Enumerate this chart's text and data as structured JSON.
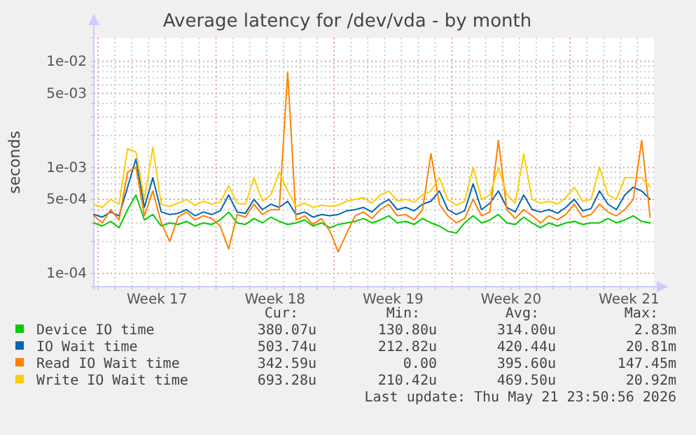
{
  "chart_data": {
    "type": "line",
    "title": "Average latency for /dev/vda - by month",
    "ylabel": "seconds",
    "log": true,
    "grid": true,
    "legend": "bottom",
    "line_style": "solid",
    "marker": "none",
    "xlim": [
      "2026-04-19T18:00",
      "2026-05-22T23:30"
    ],
    "ylim": [
      7.5e-05,
      0.0167
    ],
    "yticks": [
      {
        "value": 0.0001,
        "label": "1e-04"
      },
      {
        "value": 0.0002,
        "label": null
      },
      {
        "value": 0.0003,
        "label": null
      },
      {
        "value": 0.0004,
        "label": null
      },
      {
        "value": 0.0005,
        "label": "5e-04"
      },
      {
        "value": 0.0006,
        "label": null
      },
      {
        "value": 0.0007,
        "label": null
      },
      {
        "value": 0.0008,
        "label": null
      },
      {
        "value": 0.0009,
        "label": null
      },
      {
        "value": 0.001,
        "label": "1e-03"
      },
      {
        "value": 0.002,
        "label": null
      },
      {
        "value": 0.003,
        "label": null
      },
      {
        "value": 0.004,
        "label": null
      },
      {
        "value": 0.005,
        "label": "5e-03"
      },
      {
        "value": 0.006,
        "label": null
      },
      {
        "value": 0.007,
        "label": null
      },
      {
        "value": 0.008,
        "label": null
      },
      {
        "value": 0.009,
        "label": null
      },
      {
        "value": 0.01,
        "label": "1e-02"
      }
    ],
    "xticks": [
      {
        "value": "2026-04-20",
        "label": null
      },
      {
        "value": "2026-04-21",
        "label": null
      },
      {
        "value": "2026-04-22",
        "label": null
      },
      {
        "value": "2026-04-23",
        "label": null
      },
      {
        "value": "2026-04-24",
        "label": null
      },
      {
        "value": "2026-04-25",
        "label": null
      },
      {
        "value": "2026-04-26",
        "label": null
      },
      {
        "value": "2026-04-27",
        "label": null
      },
      {
        "value": "2026-04-28",
        "label": null
      },
      {
        "value": "2026-04-29",
        "label": null
      },
      {
        "value": "2026-04-30",
        "label": null
      },
      {
        "value": "2026-05-01",
        "label": null
      },
      {
        "value": "2026-05-02",
        "label": null
      },
      {
        "value": "2026-05-03",
        "label": null
      },
      {
        "value": "2026-05-04",
        "label": null
      },
      {
        "value": "2026-05-05",
        "label": null
      },
      {
        "value": "2026-05-06",
        "label": null
      },
      {
        "value": "2026-05-07",
        "label": null
      },
      {
        "value": "2026-05-08",
        "label": null
      },
      {
        "value": "2026-05-09",
        "label": null
      },
      {
        "value": "2026-05-10",
        "label": null
      },
      {
        "value": "2026-05-11",
        "label": null
      },
      {
        "value": "2026-05-12",
        "label": null
      },
      {
        "value": "2026-05-13",
        "label": null
      },
      {
        "value": "2026-05-14",
        "label": null
      },
      {
        "value": "2026-05-15",
        "label": null
      },
      {
        "value": "2026-05-16",
        "label": null
      },
      {
        "value": "2026-05-17",
        "label": null
      },
      {
        "value": "2026-05-18",
        "label": null
      },
      {
        "value": "2026-05-19",
        "label": null
      },
      {
        "value": "2026-05-20",
        "label": null
      },
      {
        "value": "2026-05-21",
        "label": null
      },
      {
        "value": "2026-05-22",
        "label": null
      },
      {
        "value": "2026-04-23T12:00",
        "label": "Week 17"
      },
      {
        "value": "2026-04-30T12:00",
        "label": "Week 18"
      },
      {
        "value": "2026-05-07T12:00",
        "label": "Week 19"
      },
      {
        "value": "2026-05-14T12:00",
        "label": "Week 20"
      },
      {
        "value": "2026-05-21T12:00",
        "label": "Week 21"
      }
    ],
    "x": [
      "2026-04-19T18:00",
      "2026-04-20T06:00",
      "2026-04-20T18:00",
      "2026-04-21T06:00",
      "2026-04-21T18:00",
      "2026-04-22T06:00",
      "2026-04-22T18:00",
      "2026-04-23T06:00",
      "2026-04-23T18:00",
      "2026-04-24T06:00",
      "2026-04-24T18:00",
      "2026-04-25T06:00",
      "2026-04-25T18:00",
      "2026-04-26T06:00",
      "2026-04-26T18:00",
      "2026-04-27T06:00",
      "2026-04-27T18:00",
      "2026-04-28T06:00",
      "2026-04-28T18:00",
      "2026-04-29T06:00",
      "2026-04-29T18:00",
      "2026-04-30T06:00",
      "2026-04-30T18:00",
      "2026-05-01T06:00",
      "2026-05-01T18:00",
      "2026-05-02T06:00",
      "2026-05-02T18:00",
      "2026-05-03T06:00",
      "2026-05-03T18:00",
      "2026-05-04T06:00",
      "2026-05-04T18:00",
      "2026-05-05T06:00",
      "2026-05-05T18:00",
      "2026-05-06T06:00",
      "2026-05-06T18:00",
      "2026-05-07T06:00",
      "2026-05-07T18:00",
      "2026-05-08T06:00",
      "2026-05-08T18:00",
      "2026-05-09T06:00",
      "2026-05-09T18:00",
      "2026-05-10T06:00",
      "2026-05-10T18:00",
      "2026-05-11T06:00",
      "2026-05-11T18:00",
      "2026-05-12T06:00",
      "2026-05-12T18:00",
      "2026-05-13T06:00",
      "2026-05-13T18:00",
      "2026-05-14T06:00",
      "2026-05-14T18:00",
      "2026-05-15T06:00",
      "2026-05-15T18:00",
      "2026-05-16T06:00",
      "2026-05-16T18:00",
      "2026-05-17T06:00",
      "2026-05-17T18:00",
      "2026-05-18T06:00",
      "2026-05-18T18:00",
      "2026-05-19T06:00",
      "2026-05-19T18:00",
      "2026-05-20T06:00",
      "2026-05-20T18:00",
      "2026-05-21T06:00",
      "2026-05-21T18:00",
      "2026-05-22T06:00",
      "2026-05-22T18:00"
    ],
    "series": [
      {
        "name": "Device IO time",
        "color": "#00cc00",
        "values": [
          0.0003,
          0.00028,
          0.00031,
          0.00027,
          0.0004,
          0.00055,
          0.00032,
          0.00036,
          0.00028,
          0.0003,
          0.00029,
          0.00031,
          0.00028,
          0.0003,
          0.00029,
          0.00032,
          0.00038,
          0.0003,
          0.00029,
          0.00033,
          0.0003,
          0.00034,
          0.00031,
          0.00029,
          0.0003,
          0.00032,
          0.00028,
          0.0003,
          0.00027,
          0.00029,
          0.0003,
          0.00031,
          0.00033,
          0.0003,
          0.00032,
          0.00035,
          0.0003,
          0.00031,
          0.00029,
          0.00033,
          0.0003,
          0.00028,
          0.00025,
          0.00024,
          0.0003,
          0.00035,
          0.0003,
          0.00032,
          0.00036,
          0.0003,
          0.00029,
          0.00034,
          0.0003,
          0.00027,
          0.0003,
          0.00028,
          0.0003,
          0.00031,
          0.00029,
          0.0003,
          0.0003,
          0.00033,
          0.0003,
          0.00032,
          0.00035,
          0.00031,
          0.0003
        ]
      },
      {
        "name": "IO Wait time",
        "color": "#0066b3",
        "values": [
          0.00036,
          0.00034,
          0.00038,
          0.00035,
          0.00065,
          0.0012,
          0.00042,
          0.0008,
          0.00038,
          0.00036,
          0.00037,
          0.0004,
          0.00035,
          0.00038,
          0.00036,
          0.00039,
          0.00055,
          0.00038,
          0.00037,
          0.0005,
          0.0004,
          0.00045,
          0.00042,
          0.00048,
          0.00036,
          0.00038,
          0.00034,
          0.00036,
          0.00035,
          0.00036,
          0.00039,
          0.0004,
          0.00042,
          0.00038,
          0.00045,
          0.0005,
          0.0004,
          0.00042,
          0.00039,
          0.00045,
          0.00048,
          0.0006,
          0.0004,
          0.00036,
          0.00039,
          0.0007,
          0.0004,
          0.00046,
          0.0006,
          0.00042,
          0.00038,
          0.00055,
          0.0004,
          0.00038,
          0.0004,
          0.00037,
          0.00042,
          0.0005,
          0.00039,
          0.00041,
          0.0006,
          0.00045,
          0.0004,
          0.00055,
          0.00065,
          0.0006,
          0.0005
        ]
      },
      {
        "name": "Read IO Wait time",
        "color": "#ff8000",
        "values": [
          0.00035,
          0.0003,
          0.0004,
          0.00032,
          0.0009,
          0.001,
          0.00035,
          0.0006,
          0.0003,
          0.0002,
          0.00034,
          0.00038,
          0.00032,
          0.00035,
          0.00033,
          0.00028,
          0.00017,
          0.00036,
          0.00034,
          0.00045,
          0.00036,
          0.0004,
          0.0004,
          0.00785,
          0.00032,
          0.00035,
          0.00029,
          0.00033,
          0.00025,
          0.00016,
          0.00024,
          0.00035,
          0.00038,
          0.00033,
          0.0004,
          0.00045,
          0.00035,
          0.00036,
          0.00032,
          0.0004,
          0.00135,
          0.00045,
          0.00035,
          0.0003,
          0.00033,
          0.0005,
          0.00035,
          0.00038,
          0.0018,
          0.0004,
          0.00033,
          0.0004,
          0.00035,
          0.0003,
          0.00035,
          0.00032,
          0.00036,
          0.00045,
          0.00034,
          0.00036,
          0.00045,
          0.00038,
          0.00035,
          0.0004,
          0.0005,
          0.0018,
          0.00034
        ]
      },
      {
        "name": "Write IO Wait time",
        "color": "#ffcc00",
        "values": [
          0.00045,
          0.00042,
          0.0005,
          0.00045,
          0.0015,
          0.0014,
          0.0005,
          0.00155,
          0.00045,
          0.00043,
          0.00046,
          0.0005,
          0.00044,
          0.00048,
          0.00045,
          0.00047,
          0.00067,
          0.00046,
          0.00045,
          0.0008,
          0.00048,
          0.00055,
          0.0009,
          0.0006,
          0.00043,
          0.00046,
          0.00042,
          0.00044,
          0.00043,
          0.00044,
          0.00048,
          0.0005,
          0.00052,
          0.00046,
          0.00055,
          0.0006,
          0.00048,
          0.0005,
          0.00047,
          0.00055,
          0.0006,
          0.0008,
          0.0005,
          0.00044,
          0.00048,
          0.001,
          0.0005,
          0.00055,
          0.001,
          0.00055,
          0.00046,
          0.00135,
          0.0005,
          0.00046,
          0.00048,
          0.00045,
          0.00052,
          0.00065,
          0.00048,
          0.0005,
          0.001,
          0.00055,
          0.0005,
          0.0008,
          0.0008,
          0.0008,
          0.00065
        ]
      }
    ],
    "annotations": [
      "Cur:",
      "Min:",
      "Avg:",
      "Max:",
      "380.07u",
      "130.80u",
      "314.00u",
      "2.83m",
      "503.74u",
      "212.82u",
      "420.44u",
      "20.81m",
      "342.59u",
      "0.00",
      "395.60u",
      "147.45m",
      "693.28u",
      "210.42u",
      "469.50u",
      "20.92m",
      "Last update: Thu May 21 23:50:56 2026"
    ]
  }
}
